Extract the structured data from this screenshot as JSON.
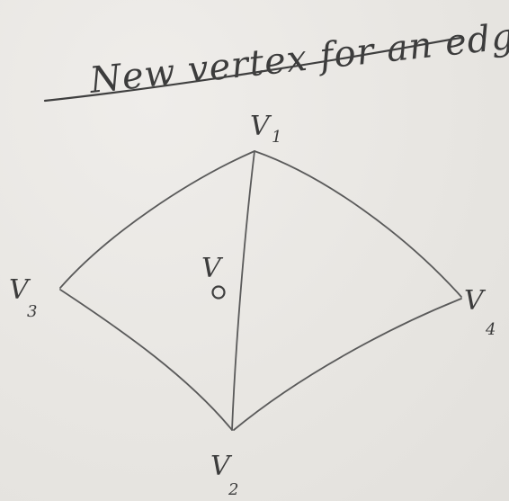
{
  "title": "New vertex for an edge",
  "vertices": {
    "v1": {
      "label": "V",
      "sub": "1"
    },
    "v2": {
      "label": "V",
      "sub": "2"
    },
    "v3": {
      "label": "V",
      "sub": "3"
    },
    "v4": {
      "label": "V",
      "sub": "4"
    },
    "v0": {
      "label": "V",
      "sub": "0"
    }
  }
}
